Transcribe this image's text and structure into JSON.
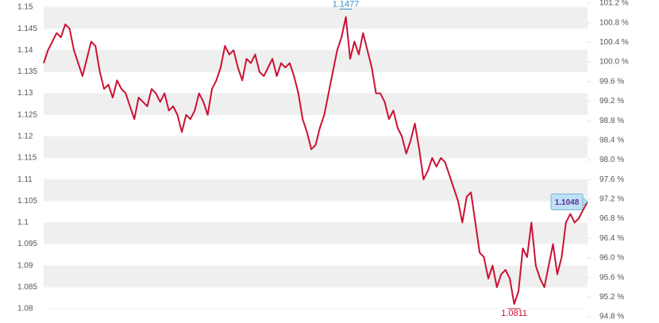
{
  "chart_data": {
    "type": "line",
    "series": [
      {
        "name": null,
        "color": "#cc1133",
        "values": [
          1.137,
          1.14,
          1.142,
          1.144,
          1.143,
          1.146,
          1.145,
          1.14,
          1.137,
          1.134,
          1.138,
          1.142,
          1.141,
          1.135,
          1.131,
          1.132,
          1.129,
          1.133,
          1.131,
          1.13,
          1.127,
          1.124,
          1.129,
          1.128,
          1.127,
          1.131,
          1.13,
          1.128,
          1.13,
          1.126,
          1.127,
          1.125,
          1.121,
          1.125,
          1.124,
          1.126,
          1.13,
          1.128,
          1.125,
          1.131,
          1.133,
          1.136,
          1.141,
          1.139,
          1.14,
          1.136,
          1.133,
          1.138,
          1.137,
          1.139,
          1.135,
          1.134,
          1.136,
          1.138,
          1.134,
          1.137,
          1.136,
          1.137,
          1.134,
          1.13,
          1.124,
          1.121,
          1.117,
          1.118,
          1.122,
          1.125,
          1.13,
          1.135,
          1.14,
          1.143,
          1.1477,
          1.138,
          1.142,
          1.139,
          1.144,
          1.14,
          1.136,
          1.13,
          1.13,
          1.128,
          1.124,
          1.126,
          1.122,
          1.12,
          1.116,
          1.119,
          1.123,
          1.117,
          1.11,
          1.112,
          1.115,
          1.113,
          1.115,
          1.114,
          1.111,
          1.108,
          1.105,
          1.1,
          1.106,
          1.107,
          1.1,
          1.093,
          1.092,
          1.087,
          1.09,
          1.085,
          1.088,
          1.089,
          1.087,
          1.0811,
          1.084,
          1.094,
          1.092,
          1.1,
          1.09,
          1.087,
          1.085,
          1.09,
          1.095,
          1.088,
          1.092,
          1.1,
          1.102,
          1.1,
          1.101,
          1.103,
          1.1048
        ]
      }
    ],
    "ylim": [
      1.08,
      1.15
    ],
    "yticks": [
      1.08,
      1.085,
      1.09,
      1.095,
      1.1,
      1.105,
      1.11,
      1.115,
      1.12,
      1.125,
      1.13,
      1.135,
      1.14,
      1.145,
      1.15
    ],
    "y2lim": [
      94.8,
      101.2
    ],
    "y2ticks": [
      {
        "value": 94.8,
        "label": "94.8 %"
      },
      {
        "value": 95.2,
        "label": "95.2 %"
      },
      {
        "value": 95.6,
        "label": "95.6 %"
      },
      {
        "value": 96.0,
        "label": "96.0 %"
      },
      {
        "value": 96.4,
        "label": "96.4 %"
      },
      {
        "value": 96.8,
        "label": "96.8 %"
      },
      {
        "value": 97.2,
        "label": "97.2 %"
      },
      {
        "value": 97.6,
        "label": "97.6 %"
      },
      {
        "value": 98.0,
        "label": "98.0 %"
      },
      {
        "value": 98.4,
        "label": "98.4 %"
      },
      {
        "value": 98.8,
        "label": "98.8 %"
      },
      {
        "value": 99.2,
        "label": "99.2 %"
      },
      {
        "value": 99.6,
        "label": "99.6 %"
      },
      {
        "value": 100.0,
        "label": "100.0 %"
      },
      {
        "value": 100.4,
        "label": "100.4 %"
      },
      {
        "value": 100.8,
        "label": "100.8 %"
      },
      {
        "value": 101.2,
        "label": "101.2 %"
      }
    ],
    "annotations": [
      {
        "label": "1.1477",
        "value": 1.1477,
        "color": "#3a8fc4"
      },
      {
        "label": "1.0811",
        "value": 1.0811,
        "color": "#c8102e"
      },
      {
        "label": "1.1048",
        "value": 1.1048,
        "color": "#5b2c8f"
      }
    ],
    "grid": true
  }
}
